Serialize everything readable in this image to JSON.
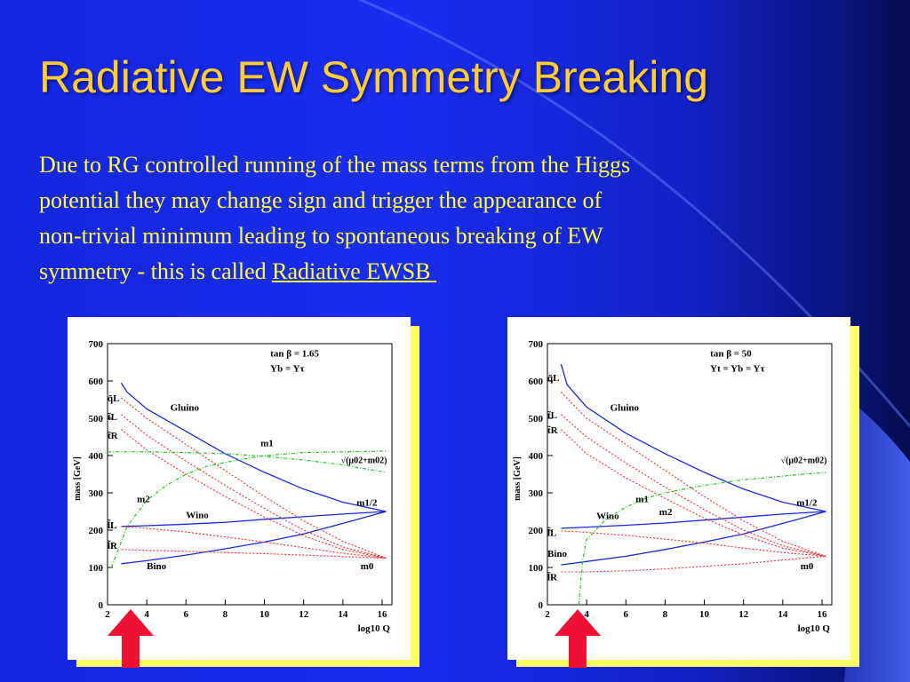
{
  "title": "Radiative EW Symmetry Breaking",
  "body": {
    "line1": "Due to RG controlled running  of the mass terms from the Higgs",
    "line2": "potential they may change sign and trigger the appearance of",
    "line3": "non-trivial minimum leading to spontaneous breaking of EW",
    "line4_prefix": "symmetry  -  this is called  ",
    "link": "Radiative EWSB "
  },
  "colors": {
    "title": "#ffcc33",
    "body_text": "#ffff33",
    "sparticle_curves": "#ff2a2a",
    "gaugino_curves": "#1a2ad8",
    "higgs_curve": "#22cc22",
    "arrow": "#ee1133"
  },
  "icons": [
    "red-up-arrow"
  ],
  "chart_data": [
    {
      "type": "line",
      "xlabel": "log10 Q",
      "ylabel": "mass [GeV]",
      "xlim": [
        2,
        16.5
      ],
      "ylim": [
        0,
        700
      ],
      "xticks": [
        "2",
        "4",
        "6",
        "8",
        "10",
        "12",
        "14",
        "16"
      ],
      "yticks": [
        "0",
        "100",
        "200",
        "300",
        "400",
        "500",
        "600",
        "700"
      ],
      "params": [
        "tan β = 1.65",
        "Yb = Yτ"
      ],
      "labels": {
        "gluino": "Gluino",
        "wino": "Wino",
        "bino": "Bino",
        "m1": "m1",
        "m2": "m2",
        "mhalf": "m1/2",
        "m0": "m0",
        "higgs": "√(μ02+m02)",
        "qL": "q̃L",
        "tL": "t̃L",
        "tR": "t̃R",
        "lL": "l̃L",
        "lR": "l̃R"
      },
      "series": [
        {
          "name": "Gluino",
          "kind": "gaugino",
          "x": [
            2.7,
            3,
            4,
            6,
            8,
            10,
            12,
            14,
            16.2
          ],
          "y": [
            595,
            570,
            525,
            465,
            405,
            355,
            310,
            275,
            250
          ]
        },
        {
          "name": "Wino",
          "kind": "gaugino",
          "x": [
            2.7,
            4,
            6,
            8,
            10,
            12,
            14,
            16.2
          ],
          "y": [
            210,
            212,
            216,
            221,
            229,
            236,
            243,
            250
          ]
        },
        {
          "name": "Bino",
          "kind": "gaugino",
          "x": [
            2.7,
            4,
            6,
            8,
            10,
            12,
            14,
            16.2
          ],
          "y": [
            110,
            118,
            133,
            150,
            168,
            190,
            218,
            250
          ]
        },
        {
          "name": "q̃L",
          "kind": "sparticle",
          "x": [
            2.7,
            4,
            6,
            8,
            10,
            12,
            14,
            16.2
          ],
          "y": [
            555,
            500,
            430,
            360,
            290,
            225,
            170,
            125
          ]
        },
        {
          "name": "t̃L",
          "kind": "sparticle",
          "x": [
            2.7,
            4,
            6,
            8,
            10,
            12,
            14,
            16.2
          ],
          "y": [
            510,
            455,
            385,
            320,
            258,
            200,
            155,
            125
          ]
        },
        {
          "name": "t̃R",
          "kind": "sparticle",
          "x": [
            2.7,
            4,
            6,
            8,
            10,
            12,
            14,
            16.2
          ],
          "y": [
            470,
            415,
            350,
            290,
            235,
            185,
            148,
            125
          ]
        },
        {
          "name": "l̃L",
          "kind": "sparticle",
          "x": [
            2.7,
            4,
            6,
            8,
            10,
            12,
            14,
            16.2
          ],
          "y": [
            210,
            205,
            195,
            182,
            168,
            153,
            138,
            125
          ]
        },
        {
          "name": "l̃R",
          "kind": "sparticle",
          "x": [
            2.7,
            4,
            6,
            8,
            10,
            12,
            14,
            16.2
          ],
          "y": [
            148,
            146,
            143,
            140,
            137,
            133,
            129,
            125
          ]
        },
        {
          "name": "√(μ02+m02)",
          "kind": "higgs",
          "x": [
            2.2,
            3,
            4,
            5,
            6,
            7,
            8,
            10,
            12,
            14,
            16.2
          ],
          "y": [
            100,
            210,
            280,
            320,
            350,
            370,
            382,
            400,
            408,
            410,
            412
          ]
        },
        {
          "name": "√(μ02+m02)",
          "kind": "higgs",
          "x": [
            2,
            4,
            6,
            8,
            10,
            12,
            14,
            16.2
          ],
          "y": [
            410,
            410,
            408,
            405,
            398,
            388,
            375,
            355
          ]
        }
      ]
    },
    {
      "type": "line",
      "xlabel": "log10 Q",
      "ylabel": "mass [GeV]",
      "xlim": [
        2,
        16.5
      ],
      "ylim": [
        0,
        700
      ],
      "xticks": [
        "2",
        "4",
        "6",
        "8",
        "10",
        "12",
        "14",
        "16"
      ],
      "yticks": [
        "0",
        "100",
        "200",
        "300",
        "400",
        "500",
        "600",
        "700"
      ],
      "params": [
        "tan β = 50",
        "Yt = Yb = Yτ"
      ],
      "labels": {
        "gluino": "Gluino",
        "wino": "Wino",
        "bino": "Bino",
        "m1": "m1",
        "m2": "m2",
        "mhalf": "m1/2",
        "m0": "m0",
        "higgs": "√(μ02+m02)",
        "qL": "q̃L",
        "tL": "t̃L",
        "tR": "t̃R",
        "lL": "l̃L",
        "lR": "l̃R"
      },
      "series": [
        {
          "name": "Gluino",
          "kind": "gaugino",
          "x": [
            2.7,
            3,
            4,
            6,
            8,
            10,
            12,
            14,
            16.2
          ],
          "y": [
            645,
            590,
            530,
            460,
            405,
            355,
            310,
            275,
            250
          ]
        },
        {
          "name": "Wino",
          "kind": "gaugino",
          "x": [
            2.7,
            4,
            6,
            8,
            10,
            12,
            14,
            16.2
          ],
          "y": [
            205,
            208,
            213,
            219,
            227,
            235,
            243,
            250
          ]
        },
        {
          "name": "Bino",
          "kind": "gaugino",
          "x": [
            2.7,
            4,
            6,
            8,
            10,
            12,
            14,
            16.2
          ],
          "y": [
            107,
            116,
            130,
            148,
            168,
            190,
            218,
            250
          ]
        },
        {
          "name": "q̃L",
          "kind": "sparticle",
          "x": [
            2.7,
            4,
            6,
            8,
            10,
            12,
            14,
            16.2
          ],
          "y": [
            570,
            500,
            430,
            360,
            290,
            225,
            170,
            130
          ]
        },
        {
          "name": "t̃L",
          "kind": "sparticle",
          "x": [
            2.7,
            4,
            6,
            8,
            10,
            12,
            14,
            16.2
          ],
          "y": [
            510,
            450,
            380,
            315,
            255,
            200,
            158,
            130
          ]
        },
        {
          "name": "t̃R",
          "kind": "sparticle",
          "x": [
            2.7,
            4,
            6,
            8,
            10,
            12,
            14,
            16.2
          ],
          "y": [
            470,
            405,
            340,
            285,
            232,
            187,
            152,
            130
          ]
        },
        {
          "name": "l̃L",
          "kind": "sparticle",
          "x": [
            2.7,
            4,
            6,
            8,
            10,
            12,
            14,
            16.2
          ],
          "y": [
            198,
            194,
            186,
            176,
            165,
            152,
            140,
            130
          ]
        },
        {
          "name": "l̃R",
          "kind": "sparticle",
          "x": [
            2.7,
            4,
            6,
            8,
            10,
            12,
            14,
            16.2
          ],
          "y": [
            88,
            88,
            91,
            96,
            103,
            110,
            120,
            130
          ]
        },
        {
          "name": "√(μ02+m02)",
          "kind": "higgs",
          "x": [
            3.6,
            3.8,
            4,
            5,
            6,
            7,
            8,
            10,
            12,
            14,
            16.2
          ],
          "y": [
            0,
            120,
            175,
            230,
            262,
            285,
            300,
            320,
            335,
            345,
            355
          ]
        }
      ]
    }
  ]
}
